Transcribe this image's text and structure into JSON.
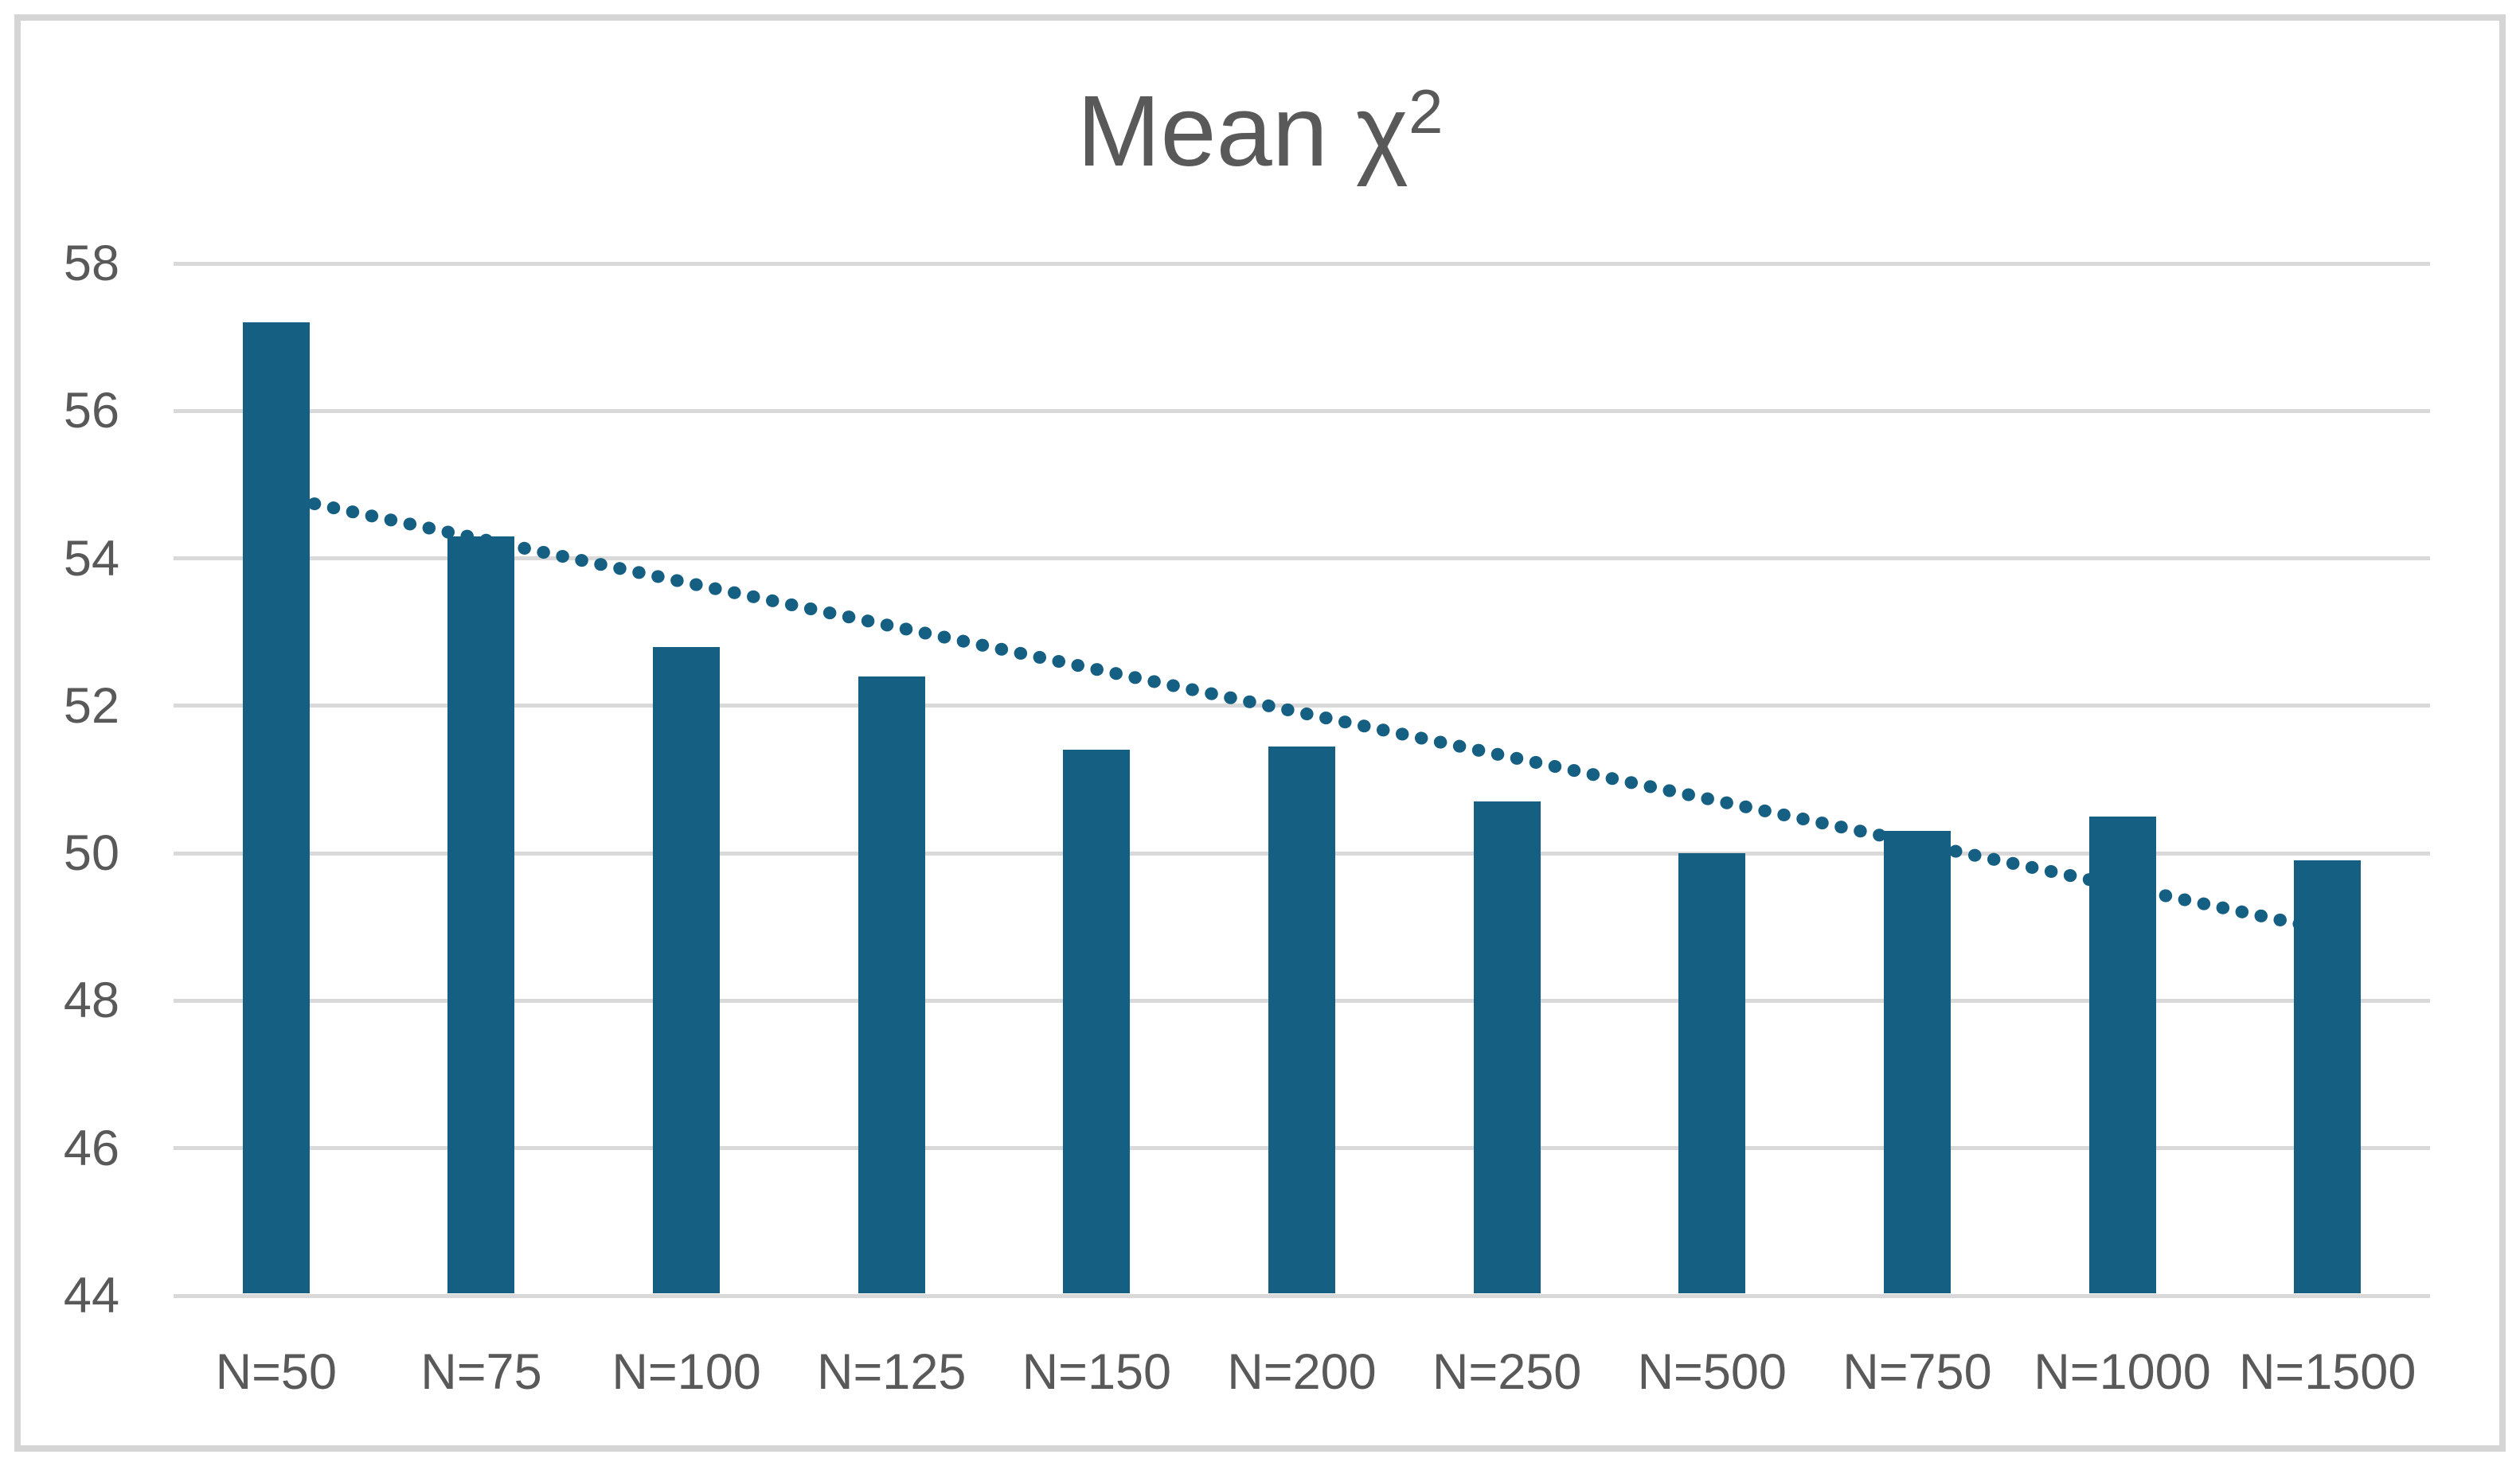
{
  "title": {
    "main": "Mean χ",
    "sup": "2",
    "full": "Mean χ²"
  },
  "chart_data": {
    "type": "bar",
    "title": "Mean χ²",
    "categories": [
      "N=50",
      "N=75",
      "N=100",
      "N=125",
      "N=150",
      "N=200",
      "N=250",
      "N=500",
      "N=750",
      "N=1000",
      "N=1500"
    ],
    "values": [
      57.2,
      54.3,
      52.8,
      52.4,
      51.4,
      51.45,
      50.7,
      50.0,
      50.3,
      50.5,
      49.9
    ],
    "series_name": "Mean χ²",
    "xlabel": "",
    "ylabel": "",
    "ylim": [
      44,
      58
    ],
    "ytick_step": 2,
    "yticks": [
      58,
      56,
      54,
      52,
      50,
      48,
      46,
      44
    ],
    "grid": true,
    "legend_position": "none",
    "trendline": {
      "type": "linear",
      "style": "dotted",
      "start_value": 54.85,
      "end_value": 48.96
    }
  },
  "colors": {
    "bar": "#155f83",
    "trendline": "#155f83",
    "gridline": "#d9d9d9",
    "axis_text": "#595959",
    "title_text": "#595959",
    "frame_border": "#d5d5d5",
    "background": "#ffffff"
  }
}
